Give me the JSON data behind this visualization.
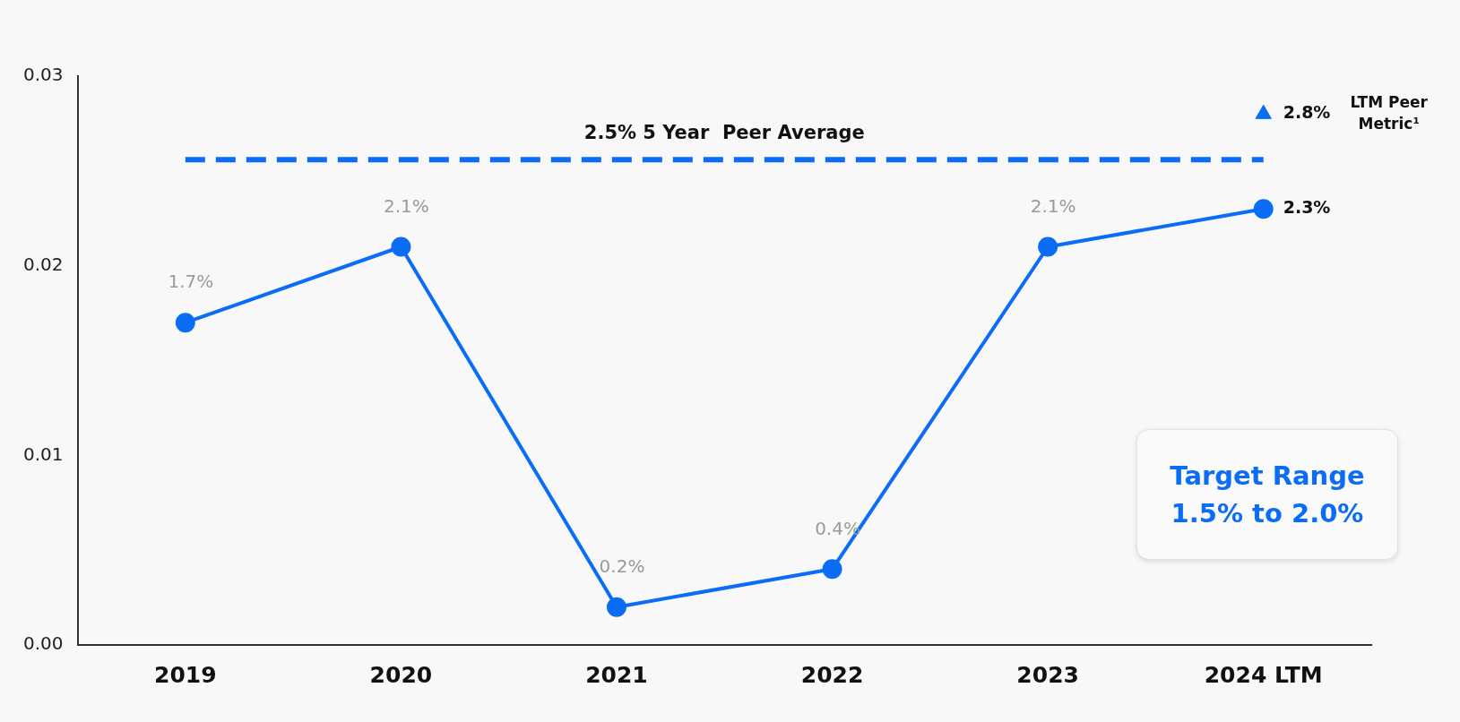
{
  "chart_data": {
    "type": "line",
    "categories": [
      "2019",
      "2020",
      "2021",
      "2022",
      "2023",
      "2024 LTM"
    ],
    "series": [
      {
        "color": "#0b6cf5",
        "marker": "circle",
        "values": [
          0.017,
          0.021,
          0.002,
          0.004,
          0.021,
          0.023
        ],
        "value_labels": [
          "1.7%",
          "2.1%",
          "0.2%",
          "0.4%",
          "2.1%",
          "2.3%"
        ]
      },
      {
        "type": "scatter",
        "color": "#0b6cf5",
        "marker": "triangle",
        "x": [
          "2024 LTM"
        ],
        "values": [
          0.028
        ],
        "value_labels": [
          "2.8%"
        ]
      }
    ],
    "ylim": [
      0,
      0.03
    ],
    "yticks": [
      {
        "value": 0,
        "label": "0.00"
      },
      0.01,
      0.02,
      0.03
    ],
    "ref_lines": [
      {
        "axis": "y",
        "value": 0.0256,
        "label": "2.5% 5 Year  Peer Average",
        "color": "#0b6cf5",
        "line_style": "dashed"
      }
    ],
    "annotations": [
      "LTM Peer Metric¹",
      "Target Range 1.5% to 2.0%"
    ],
    "grid": false,
    "legend": false,
    "line_style": "solid"
  }
}
